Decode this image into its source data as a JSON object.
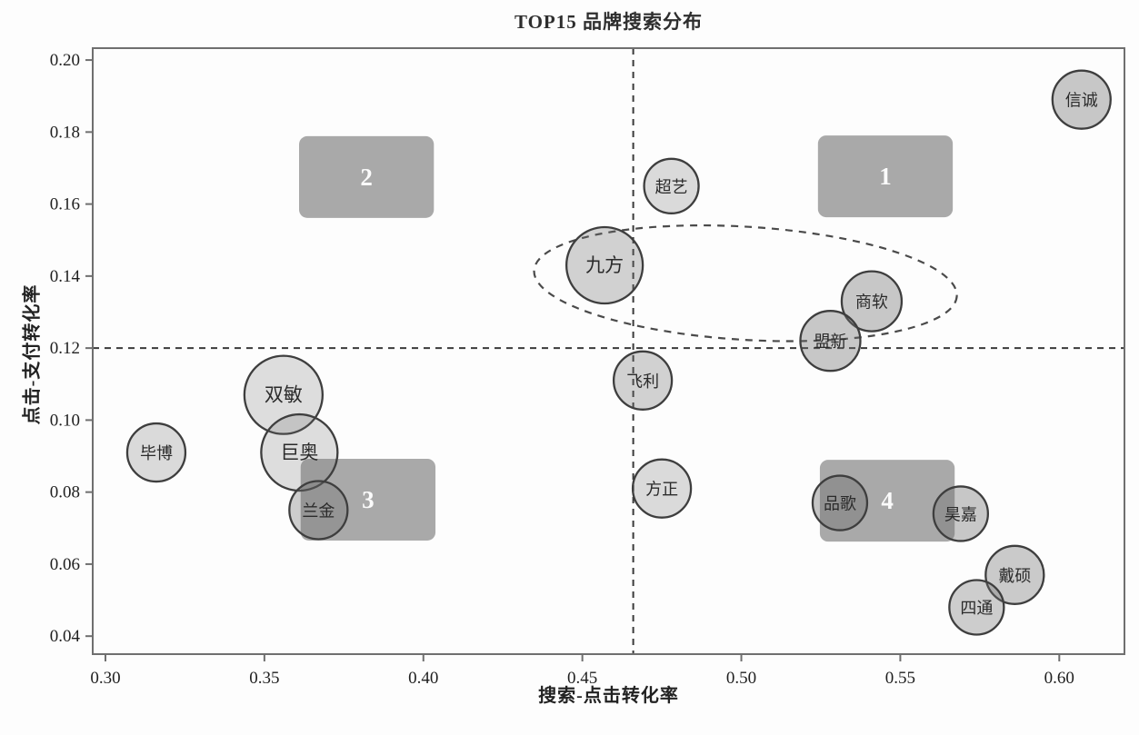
{
  "chart_data": {
    "type": "scatter",
    "title": "TOP15 品牌搜索分布",
    "xlabel": "搜索-点击转化率",
    "ylabel": "点击-支付转化率",
    "xlim": [
      0.296,
      0.6205
    ],
    "ylim": [
      0.035,
      0.2033
    ],
    "xticks": [
      0.3,
      0.35,
      0.4,
      0.45,
      0.5,
      0.55,
      0.6
    ],
    "yticks": [
      0.04,
      0.06,
      0.08,
      0.1,
      0.12,
      0.14,
      0.16,
      0.18,
      0.2
    ],
    "grid": false,
    "legend": "none",
    "reference_lines": {
      "vertical_x": 0.466,
      "horizontal_y": 0.12
    },
    "quadrant_boxes": [
      {
        "label": "1",
        "x": 0.5453,
        "y": 0.1677,
        "width": 0.0424,
        "height": 0.0227
      },
      {
        "label": "2",
        "x": 0.3821,
        "y": 0.1675,
        "width": 0.0424,
        "height": 0.0227
      },
      {
        "label": "3",
        "x": 0.3826,
        "y": 0.0779,
        "width": 0.0424,
        "height": 0.0227
      },
      {
        "label": "4",
        "x": 0.5459,
        "y": 0.0776,
        "width": 0.0424,
        "height": 0.0227
      }
    ],
    "highlight_ellipse": {
      "cx": 0.5013,
      "cy": 0.138,
      "rx": 0.0666,
      "ry": 0.0157,
      "rotation_deg": 3.5
    },
    "points": [
      {
        "label": "信诚",
        "x": 0.607,
        "y": 0.189,
        "r": 32,
        "shade": 0.38
      },
      {
        "label": "超艺",
        "x": 0.478,
        "y": 0.165,
        "r": 30,
        "shade": 0.24
      },
      {
        "label": "九方",
        "x": 0.457,
        "y": 0.143,
        "r": 42,
        "shade": 0.3
      },
      {
        "label": "商软",
        "x": 0.541,
        "y": 0.133,
        "r": 33,
        "shade": 0.38
      },
      {
        "label": "盟新",
        "x": 0.528,
        "y": 0.122,
        "r": 33,
        "shade": 0.38
      },
      {
        "label": "飞利",
        "x": 0.469,
        "y": 0.111,
        "r": 32,
        "shade": 0.3
      },
      {
        "label": "双敏",
        "x": 0.356,
        "y": 0.107,
        "r": 43,
        "shade": 0.22
      },
      {
        "label": "毕博",
        "x": 0.316,
        "y": 0.091,
        "r": 32,
        "shade": 0.24
      },
      {
        "label": "巨奥",
        "x": 0.361,
        "y": 0.091,
        "r": 42,
        "shade": 0.22
      },
      {
        "label": "兰金",
        "x": 0.367,
        "y": 0.075,
        "r": 32,
        "shade": 0.34
      },
      {
        "label": "方正",
        "x": 0.475,
        "y": 0.081,
        "r": 32,
        "shade": 0.24
      },
      {
        "label": "品歌",
        "x": 0.531,
        "y": 0.077,
        "r": 30,
        "shade": 0.4
      },
      {
        "label": "昊嘉",
        "x": 0.569,
        "y": 0.074,
        "r": 30,
        "shade": 0.38
      },
      {
        "label": "戴硕",
        "x": 0.586,
        "y": 0.057,
        "r": 32,
        "shade": 0.36
      },
      {
        "label": "四通",
        "x": 0.574,
        "y": 0.048,
        "r": 30,
        "shade": 0.34
      }
    ],
    "colors": {
      "bubble_fill": "#6e6e6e",
      "bubble_stroke": "#3e3e3e",
      "bubble_label": "#2b2b2b",
      "box_fill": "#a6a6a6",
      "box_label": "#ffffff",
      "dash_line": "#3a3a3a",
      "ellipse_stroke": "#4a4a4a",
      "axis": "#6f6f6f",
      "tick_text": "#1f1f1f"
    }
  }
}
